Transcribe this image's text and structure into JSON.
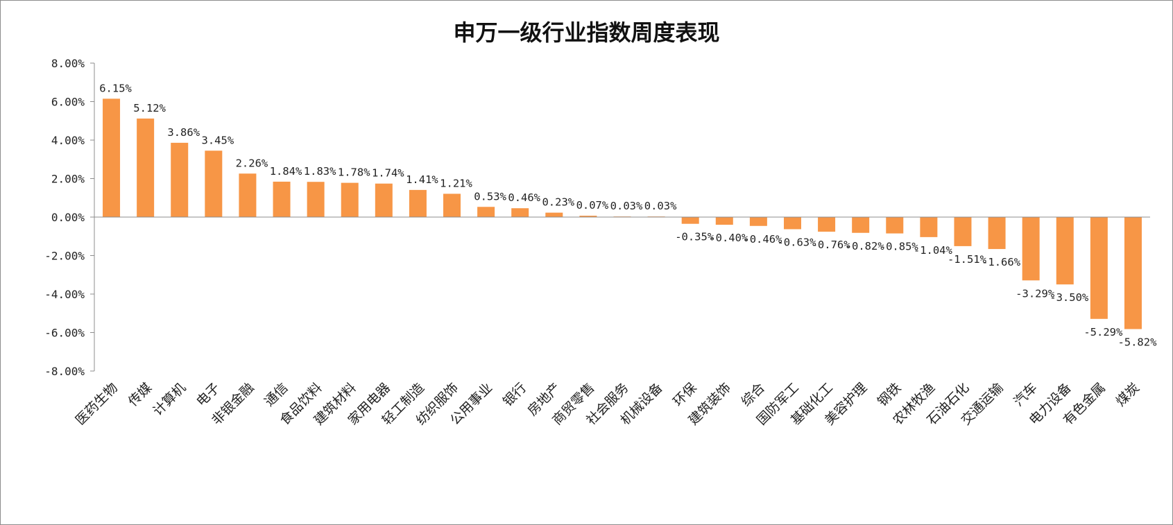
{
  "chart_data": {
    "type": "bar",
    "title": "申万一级行业指数周度表现",
    "xlabel": "",
    "ylabel": "",
    "ylim": [
      -8,
      8
    ],
    "y_ticks": [
      "8.00%",
      "6.00%",
      "4.00%",
      "2.00%",
      "0.00%",
      "-2.00%",
      "-4.00%",
      "-6.00%",
      "-8.00%"
    ],
    "bar_color": "#F79646",
    "grid": false,
    "legend": "none",
    "categories": [
      "医药生物",
      "传媒",
      "计算机",
      "电子",
      "非银金融",
      "通信",
      "食品饮料",
      "建筑材料",
      "家用电器",
      "轻工制造",
      "纺织服饰",
      "公用事业",
      "银行",
      "房地产",
      "商贸零售",
      "社会服务",
      "机械设备",
      "环保",
      "建筑装饰",
      "综合",
      "国防军工",
      "基础化工",
      "美容护理",
      "钢铁",
      "农林牧渔",
      "石油石化",
      "交通运输",
      "汽车",
      "电力设备",
      "有色金属",
      "煤炭"
    ],
    "values": [
      6.15,
      5.12,
      3.86,
      3.45,
      2.26,
      1.84,
      1.83,
      1.78,
      1.74,
      1.41,
      1.21,
      0.53,
      0.46,
      0.23,
      0.07,
      0.03,
      0.03,
      -0.35,
      -0.4,
      -0.46,
      -0.63,
      -0.76,
      -0.82,
      -0.85,
      -1.04,
      -1.51,
      -1.66,
      -3.29,
      -3.5,
      -5.29,
      -5.82
    ],
    "value_labels": [
      "6.15%",
      "5.12%",
      "3.86%",
      "3.45%",
      "2.26%",
      "1.84%",
      "1.83%",
      "1.78%",
      "1.74%",
      "1.41%",
      "1.21%",
      "0.53%",
      "0.46%",
      "0.23%",
      "0.07%",
      "0.03%",
      "0.03%",
      "-0.35%",
      "-0.40%",
      "-0.46%",
      "-0.63%",
      "-0.76%",
      "-0.82%",
      "-0.85%",
      "-1.04%",
      "-1.51%",
      "-1.66%",
      "-3.29%",
      "-3.50%",
      "-5.29%",
      "-5.82%"
    ]
  }
}
